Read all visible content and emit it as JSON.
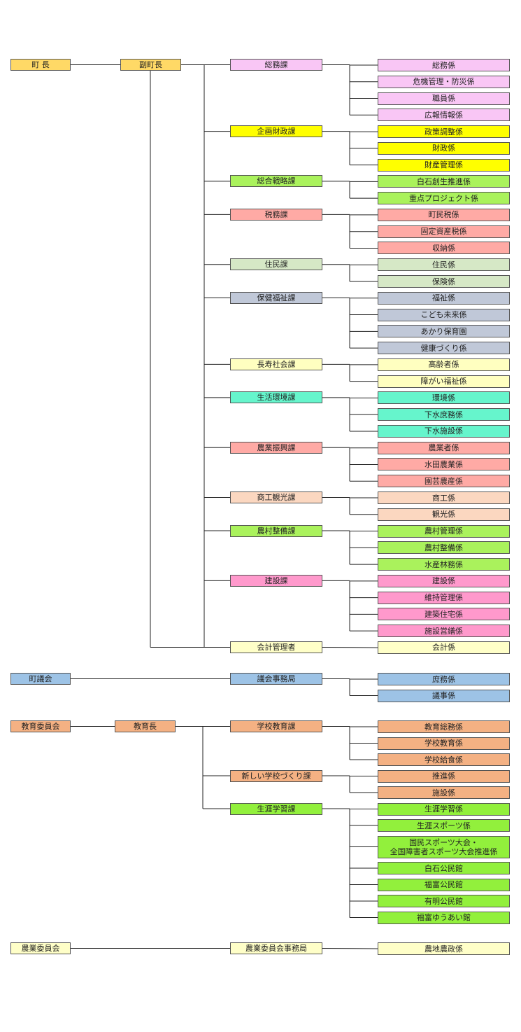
{
  "groups": [
    {
      "head": {
        "label": "町 長",
        "color": "#ffd966"
      },
      "deputy": {
        "label": "副町長",
        "color": "#ffd966"
      },
      "divisions": [
        {
          "label": "総務課",
          "color": "#f9c6f5",
          "sections": [
            "総務係",
            "危機管理・防災係",
            "職員係",
            "広報情報係"
          ]
        },
        {
          "label": "企画財政課",
          "color": "#ffff00",
          "sections": [
            "政策調整係",
            "財政係",
            "財産管理係"
          ]
        },
        {
          "label": "総合戦略課",
          "color": "#aaf25c",
          "sections": [
            "白石創生推進係",
            "重点プロジェクト係"
          ]
        },
        {
          "label": "税務課",
          "color": "#ffaaa5",
          "sections": [
            "町民税係",
            "固定資産税係",
            "収納係"
          ]
        },
        {
          "label": "住民課",
          "color": "#d6e8c6",
          "sections": [
            "住民係",
            "保険係"
          ]
        },
        {
          "label": "保健福祉課",
          "color": "#c0c8d8",
          "sections": [
            "福祉係",
            "こども未来係",
            "あかり保育園",
            "健康づくり係"
          ]
        },
        {
          "label": "長寿社会課",
          "color": "#ffffc0",
          "sections": [
            "高齢者係",
            "障がい福祉係"
          ]
        },
        {
          "label": "生活環境課",
          "color": "#66f5cc",
          "sections": [
            "環境係",
            "下水庶務係",
            "下水施設係"
          ]
        },
        {
          "label": "農業振興課",
          "color": "#ffaaa5",
          "sections": [
            "農業者係",
            "水田農業係",
            "園芸農産係"
          ]
        },
        {
          "label": "商工観光課",
          "color": "#fbd7c0",
          "sections": [
            "商工係",
            "観光係"
          ]
        },
        {
          "label": "農村整備課",
          "color": "#aaf25c",
          "sections": [
            "農村管理係",
            "農村整備係",
            "水産林務係"
          ]
        },
        {
          "label": "建設課",
          "color": "#ff99cc",
          "sections": [
            "建設係",
            "維持管理係",
            "建築住宅係",
            "施設営繕係"
          ]
        },
        {
          "label": "会計管理者",
          "color": "#ffffc8",
          "sections": [
            "会計係"
          ]
        }
      ]
    },
    {
      "head": {
        "label": "町議会",
        "color": "#9dc3e6"
      },
      "divisions": [
        {
          "label": "議会事務局",
          "color": "#9dc3e6",
          "sections": [
            "庶務係",
            "議事係"
          ]
        }
      ]
    },
    {
      "head": {
        "label": "教育委員会",
        "color": "#f4b183"
      },
      "deputy": {
        "label": "教育長",
        "color": "#f4b183"
      },
      "divisions": [
        {
          "label": "学校教育課",
          "color": "#f4b183",
          "sections": [
            "教育総務係",
            "学校教育係",
            "学校給食係"
          ]
        },
        {
          "label": "新しい学校づくり課",
          "color": "#f4b183",
          "sections": [
            "推進係",
            "施設係"
          ]
        },
        {
          "label": "生涯学習課",
          "color": "#92f03c",
          "sections": [
            "生涯学習係",
            "生涯スポーツ係",
            "国民スポーツ大会・\n全国障害者スポーツ大会推進係",
            "白石公民館",
            "福富公民館",
            "有明公民館",
            "福富ゆうあい館"
          ]
        }
      ]
    },
    {
      "head": {
        "label": "農業委員会",
        "color": "#ffffc8"
      },
      "divisions": [
        {
          "label": "農業委員会事務局",
          "color": "#ffffc8",
          "sections": [
            "農地農政係"
          ]
        }
      ]
    }
  ]
}
